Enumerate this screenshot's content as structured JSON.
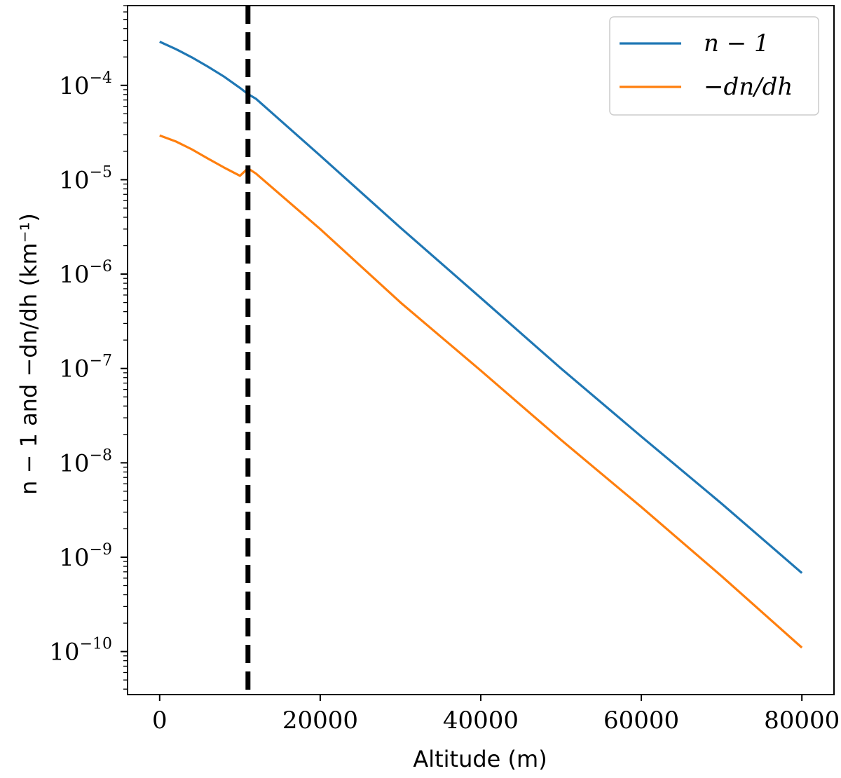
{
  "chart_data": {
    "type": "line",
    "xlabel": "Altitude (m)",
    "ylabel": "n − 1 and −dn/dh (km⁻¹)",
    "xlim": [
      -4000,
      84000
    ],
    "ylim": [
      3.5e-11,
      0.0007
    ],
    "y_scale": "log",
    "grid": false,
    "legend_position": "top-right",
    "x_ticks": [
      0,
      20000,
      40000,
      60000,
      80000
    ],
    "x_tick_labels": [
      "0",
      "20000",
      "40000",
      "60000",
      "80000"
    ],
    "y_ticks": [
      0.0001,
      1e-05,
      1e-06,
      1e-07,
      1e-08,
      1e-09,
      1e-10
    ],
    "y_tick_labels": [
      {
        "base": "10",
        "exp": "−4"
      },
      {
        "base": "10",
        "exp": "−5"
      },
      {
        "base": "10",
        "exp": "−6"
      },
      {
        "base": "10",
        "exp": "−7"
      },
      {
        "base": "10",
        "exp": "−8"
      },
      {
        "base": "10",
        "exp": "−9"
      },
      {
        "base": "10",
        "exp": "−10"
      }
    ],
    "vline": {
      "x": 11000,
      "style": "dashed",
      "color": "#000000"
    },
    "series": [
      {
        "name": "n − 1",
        "color": "#1f77b4",
        "x": [
          0,
          2000,
          4000,
          6000,
          8000,
          10000,
          11000,
          12000,
          20000,
          30000,
          40000,
          50000,
          60000,
          70000,
          80000
        ],
        "y": [
          0.00029,
          0.000243,
          0.000198,
          0.000158,
          0.000124,
          9.4e-05,
          8.1e-05,
          7.2e-05,
          1.8e-05,
          3.1e-06,
          5.6e-07,
          1e-07,
          1.9e-08,
          3.7e-09,
          6.8e-10
        ]
      },
      {
        "name": "−dn/dh",
        "color": "#ff7f0e",
        "x": [
          0,
          2000,
          4000,
          6000,
          8000,
          10000,
          11000,
          12000,
          20000,
          30000,
          40000,
          50000,
          60000,
          70000,
          80000
        ],
        "y": [
          2.95e-05,
          2.55e-05,
          2.1e-05,
          1.68e-05,
          1.35e-05,
          1.1e-05,
          1.32e-05,
          1.16e-05,
          3e-06,
          5e-07,
          9.5e-08,
          1.75e-08,
          3.4e-09,
          6.3e-10,
          1.1e-10
        ]
      }
    ]
  }
}
